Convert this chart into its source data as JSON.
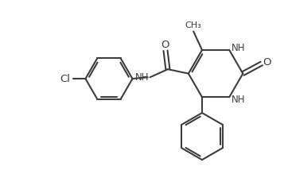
{
  "background_color": "#ffffff",
  "line_color": "#3d3d3d",
  "line_width": 1.5,
  "font_size": 8.5,
  "figsize": [
    3.62,
    2.14
  ],
  "dpi": 100,
  "xlim": [
    0,
    10
  ],
  "ylim": [
    0,
    5.9
  ]
}
